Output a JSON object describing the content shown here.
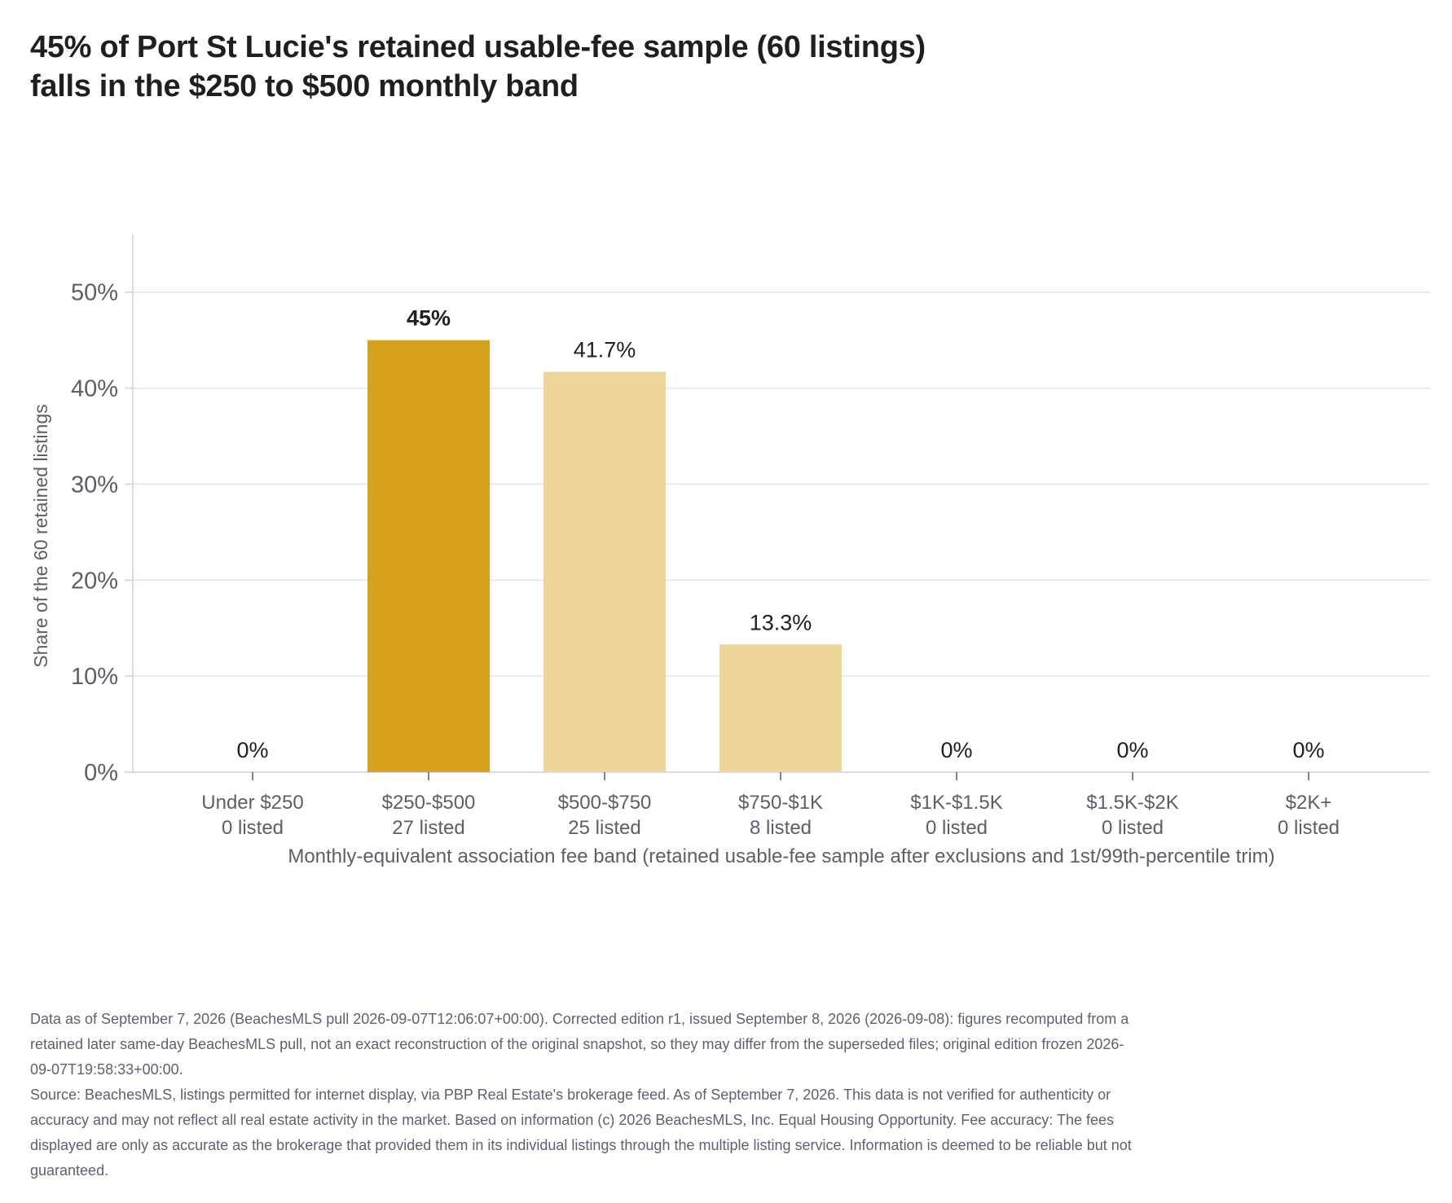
{
  "title_lines": [
    "45% of Port St Lucie's retained usable-fee sample (60 listings)",
    "falls in the $250 to $500 monthly band"
  ],
  "chart_data": {
    "type": "bar",
    "categories": [
      "Under $250",
      "$250-$500",
      "$500-$750",
      "$750-$1K",
      "$1K-$1.5K",
      "$1.5K-$2K",
      "$2K+"
    ],
    "category_sublabels": [
      "0 listed",
      "27 listed",
      "25 listed",
      "8 listed",
      "0 listed",
      "0 listed",
      "0 listed"
    ],
    "values": [
      0,
      45,
      41.7,
      13.3,
      0,
      0,
      0
    ],
    "value_labels": [
      "0%",
      "45%",
      "41.7%",
      "13.3%",
      "0%",
      "0%",
      "0%"
    ],
    "highlight_index": 1,
    "xlabel": "Monthly-equivalent association fee band (retained usable-fee sample after exclusions and 1st/99th-percentile trim)",
    "ylabel": "Share of the 60 retained listings",
    "ylim": [
      0,
      56
    ],
    "yticks": [
      0,
      10,
      20,
      30,
      40,
      50
    ],
    "ytick_labels": [
      "0%",
      "10%",
      "20%",
      "30%",
      "40%",
      "50%"
    ],
    "grid": true,
    "colors": {
      "highlight": "#d6a21e",
      "default": "#eed599",
      "grid": "#e3e3ee",
      "axis": "#cfd0dc",
      "tick_text": "#5c5f6b",
      "label_text": "#1f1f1f"
    }
  },
  "notes": [
    "Data as of September 7, 2026 (BeachesMLS pull 2026-09-07T12:06:07+00:00). Corrected edition r1, issued September 8, 2026 (2026-09-08): figures recomputed from a retained later same-day BeachesMLS pull, not an exact reconstruction of the original snapshot, so they may differ from the superseded files; original edition frozen 2026-09-07T19:58:33+00:00.",
    "Source: BeachesMLS, listings permitted for internet display, via PBP Real Estate's brokerage feed. As of September 7, 2026. This data is not verified for authenticity or accuracy and may not reflect all real estate activity in the market. Based on information (c) 2026 BeachesMLS, Inc. Equal Housing Opportunity. Fee accuracy: The fees displayed are only as accurate as the brokerage that provided them in its individual listings through the multiple listing service. Information is deemed to be reliable but not guaranteed."
  ]
}
